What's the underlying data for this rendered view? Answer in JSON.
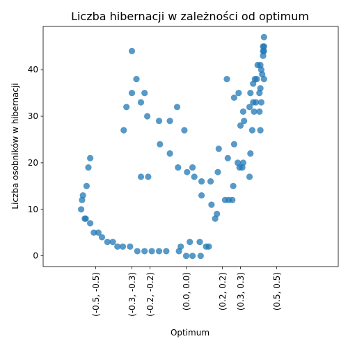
{
  "chart_data": {
    "type": "scatter",
    "title": "Liczba hibernacji w zależności od optimum",
    "xlabel": "Optimum",
    "ylabel": "Liczba osobników w hibernacji",
    "xlim": [
      -0.79,
      0.84
    ],
    "ylim": [
      -2.3,
      49.3
    ],
    "xticks": [
      {
        "value": -0.5,
        "label": "(-0.5, -0.5)"
      },
      {
        "value": -0.3,
        "label": "(-0.3, -0.3)"
      },
      {
        "value": -0.2,
        "label": "(-0.2, -0.2)"
      },
      {
        "value": 0.0,
        "label": "(0.0, 0.0)"
      },
      {
        "value": 0.2,
        "label": "(0.2, 0.2)"
      },
      {
        "value": 0.3,
        "label": "(0.3, 0.3)"
      },
      {
        "value": 0.5,
        "label": "(0.5, 0.5)"
      }
    ],
    "yticks": [
      0,
      10,
      20,
      30,
      40
    ],
    "grid": false,
    "marker_color": "#1f77b4",
    "points": [
      [
        -0.3,
        44
      ],
      [
        -0.275,
        38
      ],
      [
        -0.3,
        35
      ],
      [
        -0.23,
        35
      ],
      [
        -0.25,
        33
      ],
      [
        -0.33,
        32
      ],
      [
        -0.345,
        27
      ],
      [
        -0.215,
        30
      ],
      [
        -0.05,
        32
      ],
      [
        -0.01,
        27
      ],
      [
        -0.15,
        29
      ],
      [
        -0.09,
        29
      ],
      [
        -0.145,
        24
      ],
      [
        -0.09,
        22
      ],
      [
        -0.045,
        19
      ],
      [
        0.005,
        18
      ],
      [
        0.035,
        19
      ],
      [
        -0.25,
        17
      ],
      [
        -0.21,
        17
      ],
      [
        0.045,
        17
      ],
      [
        0.085,
        16
      ],
      [
        0.135,
        16
      ],
      [
        0.18,
        23
      ],
      [
        0.175,
        18
      ],
      [
        0.085,
        13
      ],
      [
        0.14,
        11
      ],
      [
        0.17,
        9
      ],
      [
        0.16,
        8
      ],
      [
        0.215,
        12
      ],
      [
        0.235,
        12
      ],
      [
        0.255,
        12
      ],
      [
        0.26,
        15
      ],
      [
        0.23,
        21
      ],
      [
        0.265,
        24
      ],
      [
        0.285,
        20
      ],
      [
        0.295,
        19
      ],
      [
        0.31,
        19
      ],
      [
        0.315,
        20
      ],
      [
        0.35,
        17
      ],
      [
        0.355,
        22
      ],
      [
        0.225,
        38
      ],
      [
        0.265,
        34
      ],
      [
        0.29,
        35
      ],
      [
        0.3,
        28
      ],
      [
        0.315,
        31
      ],
      [
        0.32,
        29
      ],
      [
        0.35,
        32
      ],
      [
        0.355,
        35
      ],
      [
        0.37,
        33
      ],
      [
        0.385,
        33
      ],
      [
        0.365,
        27
      ],
      [
        0.375,
        31
      ],
      [
        0.37,
        37
      ],
      [
        0.38,
        38
      ],
      [
        0.39,
        38
      ],
      [
        0.395,
        41
      ],
      [
        0.405,
        35
      ],
      [
        0.41,
        36
      ],
      [
        0.415,
        40
      ],
      [
        0.42,
        39
      ],
      [
        0.405,
        31
      ],
      [
        0.41,
        27
      ],
      [
        0.415,
        33
      ],
      [
        0.43,
        38
      ],
      [
        0.41,
        41
      ],
      [
        0.425,
        43
      ],
      [
        0.425,
        44
      ],
      [
        0.43,
        44
      ],
      [
        0.425,
        45
      ],
      [
        0.43,
        45
      ],
      [
        0.43,
        47
      ],
      [
        -0.53,
        21
      ],
      [
        -0.54,
        19
      ],
      [
        -0.55,
        15
      ],
      [
        -0.57,
        13
      ],
      [
        -0.575,
        12
      ],
      [
        -0.58,
        10
      ],
      [
        -0.56,
        8
      ],
      [
        -0.555,
        8
      ],
      [
        -0.53,
        7
      ],
      [
        -0.51,
        5
      ],
      [
        -0.485,
        5
      ],
      [
        -0.465,
        4
      ],
      [
        -0.435,
        3
      ],
      [
        -0.405,
        3
      ],
      [
        -0.38,
        2
      ],
      [
        -0.35,
        2
      ],
      [
        -0.31,
        2
      ],
      [
        -0.27,
        1
      ],
      [
        -0.23,
        1
      ],
      [
        -0.19,
        1
      ],
      [
        -0.15,
        1
      ],
      [
        -0.11,
        1
      ],
      [
        -0.04,
        1
      ],
      [
        -0.03,
        2
      ],
      [
        0.0,
        0
      ],
      [
        0.02,
        3
      ],
      [
        0.035,
        0
      ],
      [
        0.075,
        3
      ],
      [
        0.08,
        0
      ],
      [
        0.11,
        2
      ],
      [
        0.125,
        2
      ]
    ]
  }
}
